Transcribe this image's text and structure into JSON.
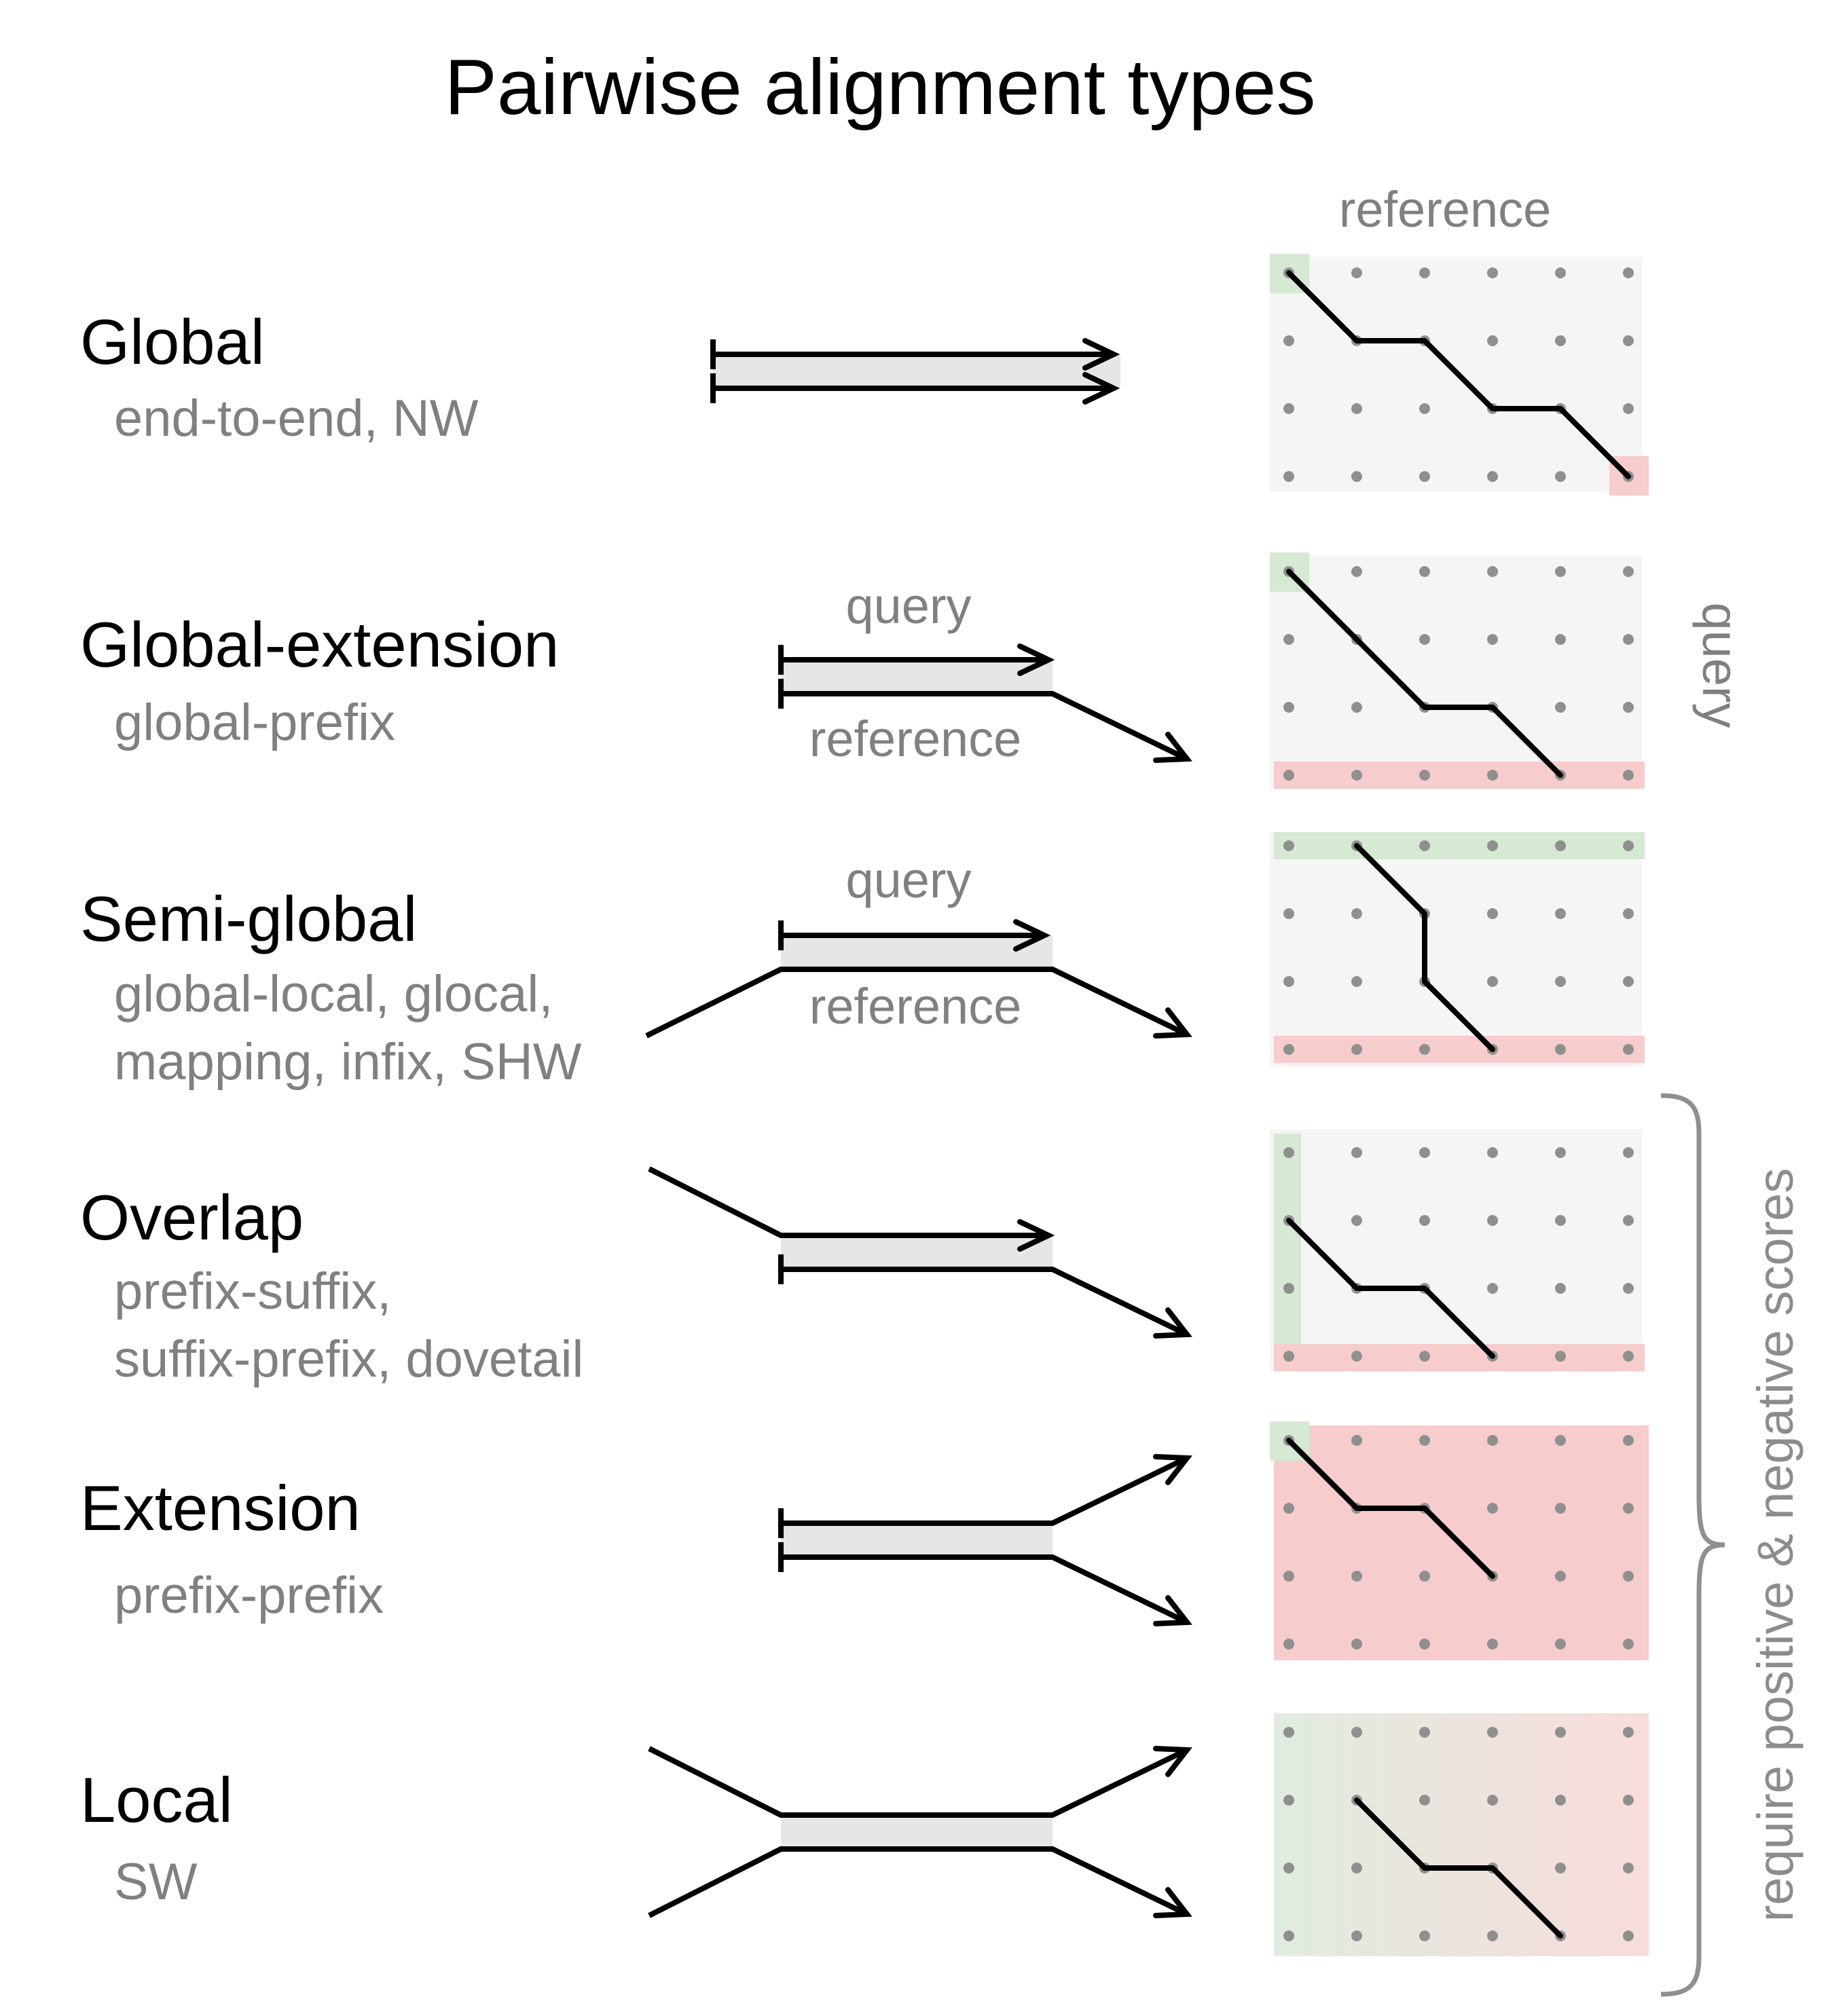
{
  "title": "Pairwise alignment types",
  "axis_labels": {
    "reference": "reference",
    "query": "query"
  },
  "brace_label": "require positive & negative scores",
  "rows": [
    {
      "name": "Global",
      "alt_names": [
        "end-to-end, NW"
      ]
    },
    {
      "name": "Global-extension",
      "alt_names": [
        "global-prefix"
      ],
      "seq_labels": [
        "query",
        "reference"
      ]
    },
    {
      "name": "Semi-global",
      "alt_names": [
        "global-local, glocal,",
        "mapping, infix, SHW"
      ],
      "seq_labels": [
        "query",
        "reference"
      ]
    },
    {
      "name": "Overlap",
      "alt_names": [
        "prefix-suffix,",
        "suffix-prefix, dovetail"
      ]
    },
    {
      "name": "Extension",
      "alt_names": [
        "prefix-prefix"
      ]
    },
    {
      "name": "Local",
      "alt_names": [
        "SW"
      ]
    }
  ],
  "colors": {
    "start_region": "#d6e9d3",
    "end_region": "#f6cccc",
    "band": "#e6e6e6",
    "grid_background": "#f5f5f5",
    "dot": "#8f8f8f",
    "label": "#808080"
  }
}
